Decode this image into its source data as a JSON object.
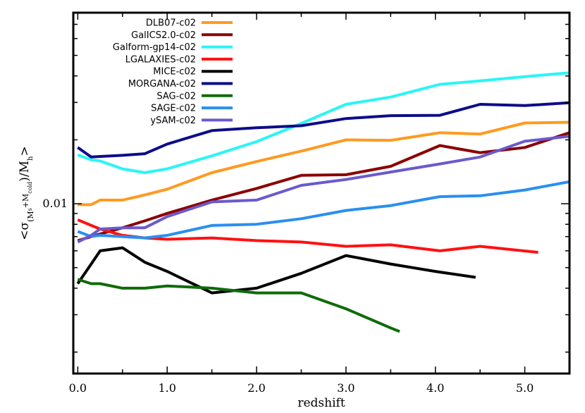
{
  "chart_data": {
    "type": "line",
    "title": "",
    "xlabel": "redshift",
    "ylabel_parts": {
      "open": "<σ",
      "sub": "(M",
      "sub2": "s",
      "sub3": "+M",
      "sub4": "cold",
      "mid": ")/M",
      "sub5": "h",
      "close": ">"
    },
    "xlim": [
      -0.05,
      5.5
    ],
    "ylim_log10": [
      -2.8,
      -1.1
    ],
    "y_scale": "log",
    "grid": false,
    "legend_position": "top-left",
    "x_ticks": [
      {
        "value": 0.0,
        "label": "0.0"
      },
      {
        "value": 1.0,
        "label": "1.0"
      },
      {
        "value": 2.0,
        "label": "2.0"
      },
      {
        "value": 3.0,
        "label": "3.0"
      },
      {
        "value": 4.0,
        "label": "4.0"
      },
      {
        "value": 5.0,
        "label": "5.0"
      }
    ],
    "y_ticks": [
      {
        "value": 0.01,
        "label": "0.01"
      }
    ],
    "series": [
      {
        "name": "DLB07-c02",
        "color": "#ff9a1f",
        "x": [
          0,
          0.15,
          0.25,
          0.5,
          0.75,
          1.0,
          1.5,
          2.0,
          2.5,
          3.0,
          3.5,
          4.05,
          4.5,
          5.0,
          5.5
        ],
        "y": [
          0.0099,
          0.0099,
          0.0104,
          0.0104,
          0.011,
          0.0117,
          0.014,
          0.0158,
          0.0177,
          0.02,
          0.0199,
          0.0216,
          0.0213,
          0.024,
          0.0242
        ]
      },
      {
        "name": "GalICS2.0-c02",
        "color": "#8b0000",
        "x": [
          0,
          0.25,
          0.5,
          0.75,
          1.0,
          1.5,
          2.0,
          2.5,
          3.0,
          3.5,
          4.05,
          4.5,
          5.0,
          5.5
        ],
        "y": [
          0.0067,
          0.0072,
          0.0077,
          0.0083,
          0.009,
          0.0104,
          0.0118,
          0.0136,
          0.0137,
          0.015,
          0.0188,
          0.0174,
          0.0184,
          0.0216
        ]
      },
      {
        "name": "Galform-gp14-c02",
        "color": "#2af5f5",
        "x": [
          0,
          0.15,
          0.25,
          0.5,
          0.75,
          1.0,
          1.5,
          2.0,
          2.5,
          3.0,
          3.5,
          4.05,
          4.5,
          5.0,
          5.5
        ],
        "y": [
          0.017,
          0.0161,
          0.0159,
          0.0146,
          0.014,
          0.0146,
          0.0168,
          0.0196,
          0.0239,
          0.0294,
          0.0318,
          0.0365,
          0.0379,
          0.0397,
          0.0414
        ]
      },
      {
        "name": "LGALAXIES-c02",
        "color": "#ff1111",
        "x": [
          0,
          0.25,
          0.5,
          0.75,
          1.0,
          1.5,
          2.0,
          2.5,
          3.0,
          3.5,
          4.05,
          4.5,
          5.15
        ],
        "y": [
          0.0084,
          0.0076,
          0.0071,
          0.0069,
          0.0068,
          0.0069,
          0.0067,
          0.0066,
          0.0063,
          0.0064,
          0.006,
          0.0063,
          0.0059
        ]
      },
      {
        "name": "MICE-c02",
        "color": "#000000",
        "x": [
          0,
          0.15,
          0.25,
          0.5,
          0.75,
          1.0,
          1.5,
          2.0,
          2.5,
          3.0,
          3.5,
          4.0,
          4.45
        ],
        "y": [
          0.0042,
          0.0052,
          0.006,
          0.0062,
          0.0053,
          0.0048,
          0.0038,
          0.004,
          0.0047,
          0.0057,
          0.0052,
          0.0048,
          0.0045
        ]
      },
      {
        "name": "MORGANA-c02",
        "color": "#0c0c8a",
        "x": [
          0,
          0.15,
          0.25,
          0.5,
          0.75,
          1.0,
          1.5,
          2.0,
          2.5,
          3.0,
          3.5,
          4.05,
          4.5,
          5.0,
          5.5
        ],
        "y": [
          0.0184,
          0.0166,
          0.0167,
          0.0169,
          0.0172,
          0.0191,
          0.0221,
          0.0228,
          0.0233,
          0.0252,
          0.026,
          0.0261,
          0.0294,
          0.029,
          0.0299
        ]
      },
      {
        "name": "SAG-c02",
        "color": "#0f6b0a",
        "x": [
          0,
          0.15,
          0.25,
          0.5,
          0.75,
          1.0,
          1.5,
          2.0,
          2.5,
          3.0,
          3.5,
          3.6
        ],
        "y": [
          0.0044,
          0.0042,
          0.0042,
          0.004,
          0.004,
          0.0041,
          0.004,
          0.0038,
          0.0038,
          0.0032,
          0.0026,
          0.0025
        ]
      },
      {
        "name": "SAGE-c02",
        "color": "#2a8ff0",
        "x": [
          0,
          0.15,
          0.25,
          0.5,
          0.75,
          1.0,
          1.5,
          2.0,
          2.5,
          3.0,
          3.5,
          4.05,
          4.5,
          5.0,
          5.5
        ],
        "y": [
          0.0074,
          0.007,
          0.0071,
          0.007,
          0.0069,
          0.0071,
          0.0079,
          0.008,
          0.0085,
          0.0093,
          0.0098,
          0.0108,
          0.0109,
          0.0116,
          0.0127
        ]
      },
      {
        "name": "ySAM-c02",
        "color": "#6a5acd",
        "x": [
          0,
          0.15,
          0.25,
          0.5,
          0.75,
          1.0,
          1.5,
          2.0,
          2.5,
          3.0,
          3.5,
          4.05,
          4.5,
          5.0,
          5.5
        ],
        "y": [
          0.0066,
          0.0071,
          0.0076,
          0.0077,
          0.0077,
          0.0087,
          0.0102,
          0.0104,
          0.0122,
          0.013,
          0.0141,
          0.0154,
          0.0166,
          0.0197,
          0.0208
        ]
      }
    ]
  }
}
